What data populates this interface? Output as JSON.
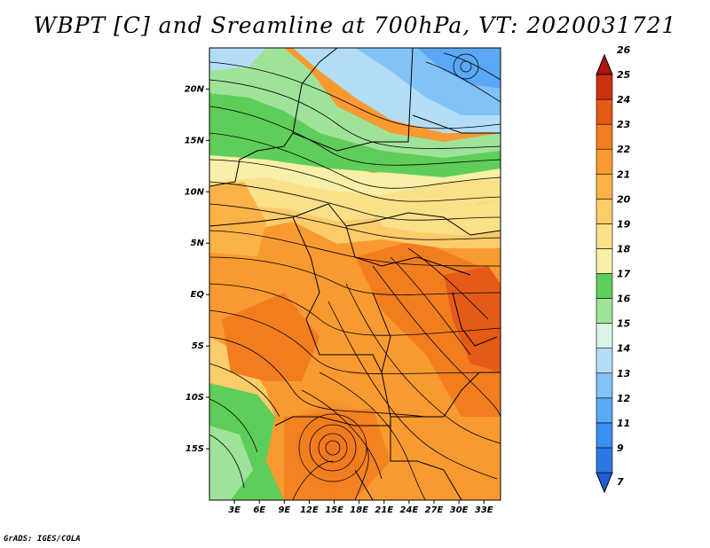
{
  "title": "WBPT [C] and Sreamline at 700hPa, VT: 2020031721",
  "footer": "GrADS: IGES/COLA",
  "map": {
    "lon_range": [
      0,
      35
    ],
    "lat_range": [
      -20,
      24
    ],
    "lat_ticks": [
      {
        "value": 20,
        "label": "20N"
      },
      {
        "value": 15,
        "label": "15N"
      },
      {
        "value": 10,
        "label": "10N"
      },
      {
        "value": 5,
        "label": "5N"
      },
      {
        "value": 0,
        "label": "EQ"
      },
      {
        "value": -5,
        "label": "5S"
      },
      {
        "value": -10,
        "label": "10S"
      },
      {
        "value": -15,
        "label": "15S"
      }
    ],
    "lon_ticks": [
      {
        "value": 3,
        "label": "3E"
      },
      {
        "value": 6,
        "label": "6E"
      },
      {
        "value": 9,
        "label": "9E"
      },
      {
        "value": 12,
        "label": "12E"
      },
      {
        "value": 15,
        "label": "15E"
      },
      {
        "value": 18,
        "label": "18E"
      },
      {
        "value": 21,
        "label": "21E"
      },
      {
        "value": 24,
        "label": "24E"
      },
      {
        "value": 27,
        "label": "27E"
      },
      {
        "value": 30,
        "label": "30E"
      },
      {
        "value": 33,
        "label": "33E"
      }
    ]
  },
  "colorbar": {
    "labels": [
      "7",
      "9",
      "11",
      "12",
      "13",
      "14",
      "15",
      "16",
      "17",
      "18",
      "19",
      "20",
      "21",
      "22",
      "23",
      "24",
      "25",
      "26"
    ],
    "colors": [
      "#1e5fd6",
      "#2b78e4",
      "#3b8ff0",
      "#5aa8f5",
      "#82c3f7",
      "#b3ddf7",
      "#dcf3e8",
      "#9fe39a",
      "#5fcd5a",
      "#f8f0a8",
      "#fbe08a",
      "#fccb6a",
      "#fbb247",
      "#f99a30",
      "#f27d1f",
      "#e55a17",
      "#cc3210",
      "#b3110c"
    ]
  }
}
